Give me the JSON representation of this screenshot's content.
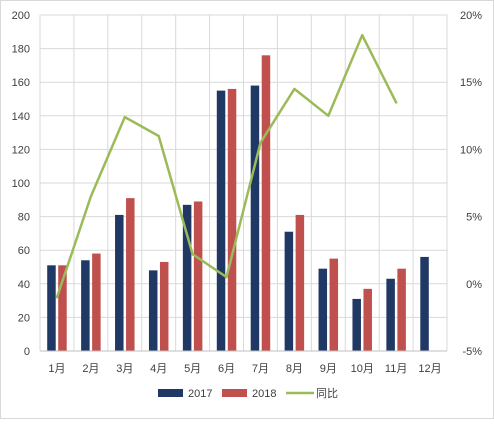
{
  "chart_data": {
    "type": "bar",
    "categories": [
      "1月",
      "2月",
      "3月",
      "4月",
      "5月",
      "6月",
      "7月",
      "8月",
      "9月",
      "10月",
      "11月",
      "12月"
    ],
    "series": [
      {
        "name": "2017",
        "type": "bar",
        "axis": "left",
        "color": "#1f3864",
        "values": [
          51,
          54,
          81,
          48,
          87,
          155,
          158,
          71,
          49,
          31,
          43,
          56
        ]
      },
      {
        "name": "2018",
        "type": "bar",
        "axis": "left",
        "color": "#c0504d",
        "values": [
          51,
          58,
          91,
          53,
          89,
          156,
          176,
          81,
          55,
          37,
          49,
          null
        ]
      },
      {
        "name": "同比",
        "type": "line",
        "axis": "right",
        "color": "#9bbb59",
        "values": [
          -1.0,
          6.5,
          12.4,
          11.0,
          2.2,
          0.5,
          10.5,
          14.5,
          12.5,
          18.5,
          13.5,
          null
        ]
      }
    ],
    "y_left": {
      "min": 0,
      "max": 200,
      "step": 20,
      "tick_labels": [
        "0",
        "20",
        "40",
        "60",
        "80",
        "100",
        "120",
        "140",
        "160",
        "180",
        "200"
      ]
    },
    "y_right": {
      "min": -5,
      "max": 20,
      "step": 5,
      "tick_labels": [
        "-5%",
        "0%",
        "5%",
        "10%",
        "15%",
        "20%"
      ]
    },
    "grid": true,
    "legend": {
      "position": "bottom",
      "entries": [
        "2017",
        "2018",
        "同比"
      ]
    }
  }
}
